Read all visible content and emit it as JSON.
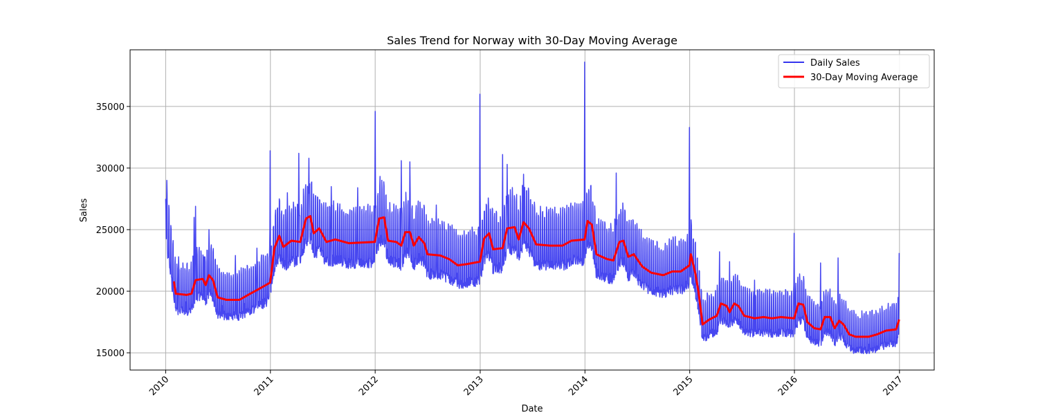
{
  "chart_data": {
    "type": "line",
    "title": "Sales Trend for Norway with 30-Day Moving Average",
    "xlabel": "Date",
    "ylabel": "Sales",
    "xlim": [
      "2009-08-30",
      "2017-05-02"
    ],
    "ylim": [
      13600,
      39600
    ],
    "x_ticks": [
      "2010",
      "2011",
      "2012",
      "2013",
      "2014",
      "2015",
      "2016",
      "2017"
    ],
    "y_ticks": [
      15000,
      20000,
      25000,
      30000,
      35000
    ],
    "y_tick_labels": [
      "15000",
      "20000",
      "25000",
      "30000",
      "35000"
    ],
    "grid": true,
    "legend_position": "top-right",
    "series": [
      {
        "name": "Daily Sales",
        "color": "#3333ee",
        "description_points": [
          [
            "2010-01-01",
            27500
          ],
          [
            "2010-01-05",
            29000
          ],
          [
            "2010-01-15",
            18500
          ],
          [
            "2010-02-15",
            22800
          ],
          [
            "2010-03-15",
            18300
          ],
          [
            "2010-04-10",
            26000
          ],
          [
            "2010-04-15",
            26900
          ],
          [
            "2010-05-15",
            22800
          ],
          [
            "2010-06-01",
            25000
          ],
          [
            "2010-07-15",
            18000
          ],
          [
            "2010-09-01",
            22900
          ],
          [
            "2010-10-01",
            18200
          ],
          [
            "2010-11-15",
            23500
          ],
          [
            "2010-12-31",
            31400
          ],
          [
            "2011-03-01",
            28000
          ],
          [
            "2011-04-10",
            31200
          ],
          [
            "2011-05-15",
            30800
          ],
          [
            "2011-08-01",
            28500
          ],
          [
            "2011-11-01",
            28400
          ],
          [
            "2012-01-01",
            34600
          ],
          [
            "2012-04-01",
            30600
          ],
          [
            "2012-05-01",
            30500
          ],
          [
            "2012-08-01",
            27000
          ],
          [
            "2012-10-15",
            20500
          ],
          [
            "2012-12-31",
            36000
          ],
          [
            "2013-03-20",
            31100
          ],
          [
            "2013-04-05",
            30300
          ],
          [
            "2013-06-01",
            29500
          ],
          [
            "2013-12-31",
            38600
          ],
          [
            "2014-04-20",
            29600
          ],
          [
            "2014-07-01",
            25500
          ],
          [
            "2014-12-31",
            33300
          ],
          [
            "2015-01-20",
            16000
          ],
          [
            "2015-04-15",
            23200
          ],
          [
            "2015-05-20",
            22400
          ],
          [
            "2015-08-15",
            20900
          ],
          [
            "2015-12-31",
            24700
          ],
          [
            "2016-04-01",
            22300
          ],
          [
            "2016-06-01",
            22700
          ],
          [
            "2016-09-15",
            14800
          ],
          [
            "2016-12-31",
            23100
          ]
        ]
      },
      {
        "name": "30-Day Moving Average",
        "color": "#ff0000",
        "points": [
          [
            "2010-01-30",
            20800
          ],
          [
            "2010-02-05",
            19800
          ],
          [
            "2010-03-15",
            19700
          ],
          [
            "2010-04-01",
            19800
          ],
          [
            "2010-04-15",
            20900
          ],
          [
            "2010-05-10",
            21000
          ],
          [
            "2010-05-20",
            20500
          ],
          [
            "2010-06-01",
            21300
          ],
          [
            "2010-06-15",
            20900
          ],
          [
            "2010-07-01",
            19500
          ],
          [
            "2010-08-01",
            19300
          ],
          [
            "2010-09-15",
            19300
          ],
          [
            "2010-10-15",
            19700
          ],
          [
            "2010-12-01",
            20300
          ],
          [
            "2010-12-31",
            20700
          ],
          [
            "2011-01-15",
            23500
          ],
          [
            "2011-02-01",
            24500
          ],
          [
            "2011-02-15",
            23600
          ],
          [
            "2011-03-15",
            24100
          ],
          [
            "2011-04-15",
            24000
          ],
          [
            "2011-05-05",
            25900
          ],
          [
            "2011-05-20",
            26100
          ],
          [
            "2011-06-01",
            24700
          ],
          [
            "2011-06-20",
            25100
          ],
          [
            "2011-07-15",
            24000
          ],
          [
            "2011-08-15",
            24200
          ],
          [
            "2011-10-01",
            23900
          ],
          [
            "2011-12-31",
            24000
          ],
          [
            "2012-01-15",
            25900
          ],
          [
            "2012-02-01",
            26000
          ],
          [
            "2012-02-15",
            24100
          ],
          [
            "2012-03-15",
            24000
          ],
          [
            "2012-04-01",
            23700
          ],
          [
            "2012-04-15",
            24800
          ],
          [
            "2012-05-01",
            24800
          ],
          [
            "2012-05-15",
            23700
          ],
          [
            "2012-06-01",
            24400
          ],
          [
            "2012-06-20",
            23900
          ],
          [
            "2012-07-01",
            23000
          ],
          [
            "2012-08-15",
            22900
          ],
          [
            "2012-09-15",
            22600
          ],
          [
            "2012-10-15",
            22100
          ],
          [
            "2012-11-15",
            22200
          ],
          [
            "2012-12-31",
            22400
          ],
          [
            "2013-01-15",
            24300
          ],
          [
            "2013-02-01",
            24700
          ],
          [
            "2013-02-15",
            23400
          ],
          [
            "2013-03-20",
            23500
          ],
          [
            "2013-04-05",
            25100
          ],
          [
            "2013-05-01",
            25200
          ],
          [
            "2013-05-15",
            24200
          ],
          [
            "2013-06-01",
            25600
          ],
          [
            "2013-06-20",
            25100
          ],
          [
            "2013-07-15",
            23800
          ],
          [
            "2013-09-01",
            23700
          ],
          [
            "2013-10-15",
            23700
          ],
          [
            "2013-11-15",
            24100
          ],
          [
            "2013-12-31",
            24200
          ],
          [
            "2014-01-10",
            25700
          ],
          [
            "2014-01-25",
            25400
          ],
          [
            "2014-02-10",
            23000
          ],
          [
            "2014-03-01",
            22800
          ],
          [
            "2014-03-20",
            22600
          ],
          [
            "2014-04-10",
            22500
          ],
          [
            "2014-05-01",
            24000
          ],
          [
            "2014-05-15",
            24100
          ],
          [
            "2014-06-01",
            22800
          ],
          [
            "2014-06-20",
            23000
          ],
          [
            "2014-07-20",
            22000
          ],
          [
            "2014-08-20",
            21500
          ],
          [
            "2014-10-01",
            21300
          ],
          [
            "2014-11-01",
            21600
          ],
          [
            "2014-12-01",
            21600
          ],
          [
            "2014-12-31",
            22100
          ],
          [
            "2015-01-05",
            23000
          ],
          [
            "2015-01-20",
            21500
          ],
          [
            "2015-02-01",
            19900
          ],
          [
            "2015-02-15",
            17300
          ],
          [
            "2015-03-10",
            17700
          ],
          [
            "2015-04-05",
            18000
          ],
          [
            "2015-04-20",
            19000
          ],
          [
            "2015-05-10",
            18800
          ],
          [
            "2015-05-20",
            18300
          ],
          [
            "2015-06-05",
            19000
          ],
          [
            "2015-06-20",
            18800
          ],
          [
            "2015-07-10",
            18000
          ],
          [
            "2015-08-15",
            17800
          ],
          [
            "2015-09-15",
            17900
          ],
          [
            "2015-10-15",
            17800
          ],
          [
            "2015-11-15",
            17900
          ],
          [
            "2015-12-31",
            17800
          ],
          [
            "2016-01-15",
            19000
          ],
          [
            "2016-02-01",
            18900
          ],
          [
            "2016-02-15",
            17500
          ],
          [
            "2016-03-10",
            17000
          ],
          [
            "2016-04-01",
            16900
          ],
          [
            "2016-04-15",
            17900
          ],
          [
            "2016-05-05",
            17900
          ],
          [
            "2016-05-20",
            17000
          ],
          [
            "2016-06-05",
            17600
          ],
          [
            "2016-06-20",
            17300
          ],
          [
            "2016-07-10",
            16500
          ],
          [
            "2016-08-01",
            16300
          ],
          [
            "2016-09-15",
            16300
          ],
          [
            "2016-10-15",
            16500
          ],
          [
            "2016-11-15",
            16800
          ],
          [
            "2016-12-20",
            16900
          ],
          [
            "2016-12-31",
            17700
          ]
        ]
      }
    ]
  }
}
